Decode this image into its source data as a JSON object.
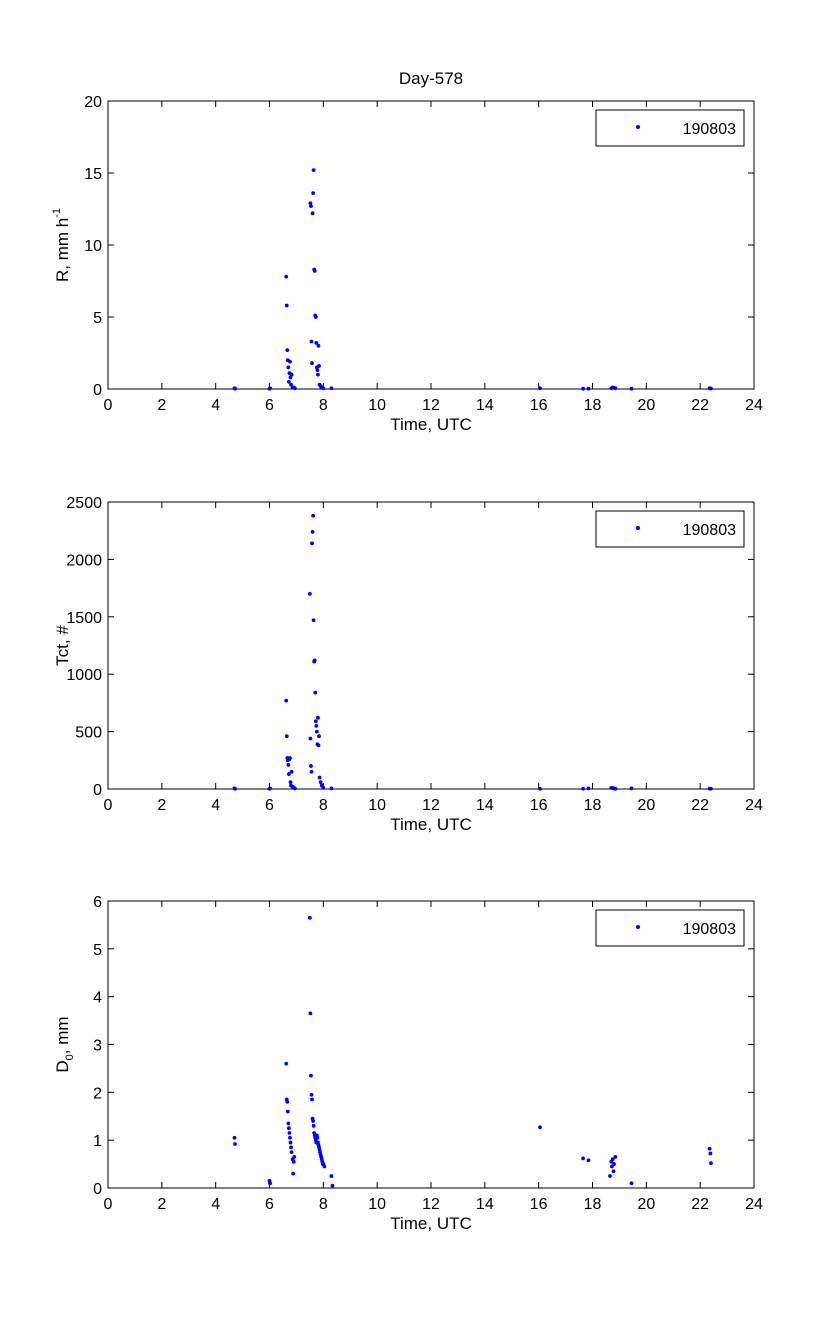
{
  "figure_title": "Day-578",
  "colors": {
    "marker": "#0000ff",
    "axes": "#000000",
    "background": "#ffffff"
  },
  "chart_data": [
    {
      "type": "scatter",
      "title": "Day-578",
      "xlabel": "Time, UTC",
      "ylabel": "R, mm h",
      "ylabel_superscript": "-1",
      "xlim": [
        0,
        24
      ],
      "ylim": [
        0,
        20
      ],
      "xticks": [
        0,
        2,
        4,
        6,
        8,
        10,
        12,
        14,
        16,
        18,
        20,
        22,
        24
      ],
      "yticks": [
        0,
        5,
        10,
        15,
        20
      ],
      "grid": false,
      "legend_position": "top-right",
      "series": [
        {
          "name": "190803",
          "marker": "dot",
          "x": [
            4.7,
            4.72,
            6.0,
            6.02,
            6.62,
            6.64,
            6.66,
            6.68,
            6.7,
            6.72,
            6.74,
            6.76,
            6.78,
            6.8,
            6.82,
            6.86,
            6.9,
            6.94,
            7.52,
            7.54,
            7.56,
            7.58,
            7.6,
            7.62,
            7.64,
            7.66,
            7.68,
            7.7,
            7.72,
            7.74,
            7.76,
            7.78,
            7.8,
            7.82,
            7.84,
            7.86,
            7.9,
            7.94,
            8.0,
            8.3,
            16.05,
            17.65,
            17.85,
            18.7,
            18.75,
            18.8,
            18.85,
            19.45,
            22.35,
            22.4
          ],
          "y": [
            0.05,
            0.02,
            0.02,
            0.05,
            7.8,
            5.8,
            2.7,
            2.0,
            1.5,
            0.5,
            1.1,
            1.9,
            0.8,
            0.3,
            1.0,
            0.1,
            0.1,
            0.05,
            12.9,
            12.7,
            3.3,
            1.8,
            12.2,
            13.6,
            15.2,
            8.3,
            8.2,
            5.1,
            5.0,
            3.2,
            1.5,
            1.3,
            1.0,
            3.0,
            1.6,
            0.3,
            0.2,
            0.1,
            0.05,
            0.05,
            0.05,
            0.02,
            0.02,
            0.05,
            0.1,
            0.08,
            0.05,
            0.02,
            0.05,
            0.03
          ]
        }
      ]
    },
    {
      "type": "scatter",
      "title": "",
      "xlabel": "Time, UTC",
      "ylabel": "Tct, #",
      "xlim": [
        0,
        24
      ],
      "ylim": [
        0,
        2500
      ],
      "xticks": [
        0,
        2,
        4,
        6,
        8,
        10,
        12,
        14,
        16,
        18,
        20,
        22,
        24
      ],
      "yticks": [
        0,
        500,
        1000,
        1500,
        2000,
        2500
      ],
      "grid": false,
      "legend_position": "top-right",
      "series": [
        {
          "name": "190803",
          "marker": "dot",
          "x": [
            4.7,
            4.72,
            6.0,
            6.02,
            6.62,
            6.64,
            6.66,
            6.68,
            6.7,
            6.72,
            6.74,
            6.76,
            6.78,
            6.8,
            6.82,
            6.86,
            6.9,
            6.94,
            7.5,
            7.52,
            7.54,
            7.56,
            7.58,
            7.6,
            7.62,
            7.64,
            7.66,
            7.68,
            7.7,
            7.72,
            7.74,
            7.76,
            7.78,
            7.8,
            7.82,
            7.84,
            7.86,
            7.9,
            7.94,
            8.0,
            8.3,
            16.05,
            17.65,
            17.85,
            18.7,
            18.75,
            18.8,
            18.85,
            19.45,
            22.35,
            22.4
          ],
          "y": [
            5,
            2,
            2,
            5,
            770,
            460,
            270,
            250,
            210,
            130,
            260,
            270,
            60,
            30,
            150,
            20,
            10,
            5,
            1700,
            440,
            200,
            150,
            2140,
            2240,
            2380,
            1470,
            1110,
            1120,
            840,
            590,
            550,
            500,
            390,
            620,
            380,
            460,
            100,
            60,
            30,
            10,
            5,
            2,
            2,
            5,
            10,
            8,
            5,
            2,
            5,
            3,
            2
          ]
        }
      ]
    },
    {
      "type": "scatter",
      "title": "",
      "xlabel": "Time, UTC",
      "ylabel": "D",
      "ylabel_subscript": "0",
      "ylabel_suffix": ", mm",
      "xlim": [
        0,
        24
      ],
      "ylim": [
        0,
        6
      ],
      "xticks": [
        0,
        2,
        4,
        6,
        8,
        10,
        12,
        14,
        16,
        18,
        20,
        22,
        24
      ],
      "yticks": [
        0,
        1,
        2,
        3,
        4,
        5,
        6
      ],
      "grid": false,
      "legend_position": "top-right",
      "series": [
        {
          "name": "190803",
          "marker": "dot",
          "x": [
            4.7,
            4.72,
            6.0,
            6.02,
            6.62,
            6.64,
            6.66,
            6.68,
            6.7,
            6.72,
            6.74,
            6.76,
            6.78,
            6.8,
            6.82,
            6.86,
            6.88,
            6.9,
            6.92,
            7.5,
            7.52,
            7.54,
            7.56,
            7.58,
            7.6,
            7.62,
            7.64,
            7.66,
            7.68,
            7.7,
            7.72,
            7.74,
            7.76,
            7.78,
            7.8,
            7.82,
            7.84,
            7.86,
            7.88,
            7.9,
            7.92,
            7.94,
            7.96,
            7.98,
            8.0,
            8.04,
            8.3,
            8.34,
            16.05,
            17.65,
            17.85,
            18.65,
            18.7,
            18.72,
            18.75,
            18.78,
            18.8,
            18.85,
            19.45,
            22.35,
            22.38,
            22.4
          ],
          "y": [
            1.05,
            0.92,
            0.15,
            0.1,
            2.6,
            1.85,
            1.8,
            1.6,
            1.35,
            1.25,
            1.15,
            1.05,
            0.95,
            0.85,
            0.75,
            0.6,
            0.3,
            0.55,
            0.65,
            5.65,
            3.65,
            2.35,
            1.95,
            1.85,
            1.45,
            1.4,
            1.3,
            1.15,
            1.1,
            1.05,
            1.0,
            0.95,
            1.1,
            1.05,
            0.95,
            0.9,
            0.85,
            0.8,
            0.75,
            0.7,
            0.65,
            0.6,
            0.55,
            0.5,
            0.5,
            0.45,
            0.25,
            0.05,
            1.27,
            0.62,
            0.58,
            0.25,
            0.55,
            0.45,
            0.6,
            0.35,
            0.5,
            0.65,
            0.1,
            0.82,
            0.72,
            0.52
          ]
        }
      ]
    }
  ]
}
